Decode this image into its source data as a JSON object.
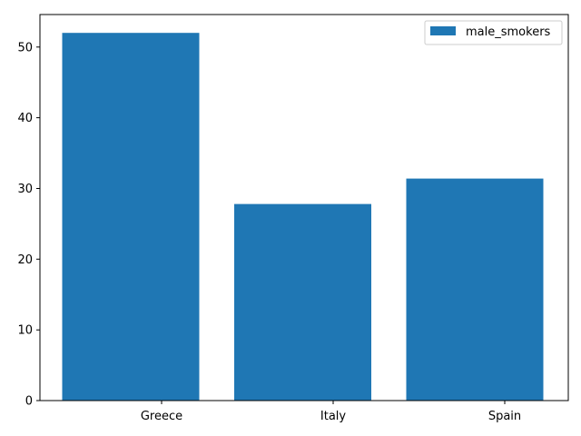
{
  "chart_data": {
    "type": "bar",
    "categories": [
      "Greece",
      "Italy",
      "Spain"
    ],
    "series": [
      {
        "name": "male_smokers",
        "values": [
          52.0,
          27.8,
          31.4
        ]
      }
    ],
    "yticks": [
      "0",
      "10",
      "20",
      "30",
      "40",
      "50"
    ],
    "ylim": [
      0,
      54.6
    ],
    "legend_position": "top-right",
    "grid": false,
    "colors": {
      "bar": "#1f77b4",
      "axis": "#000000",
      "background": "#ffffff"
    }
  }
}
